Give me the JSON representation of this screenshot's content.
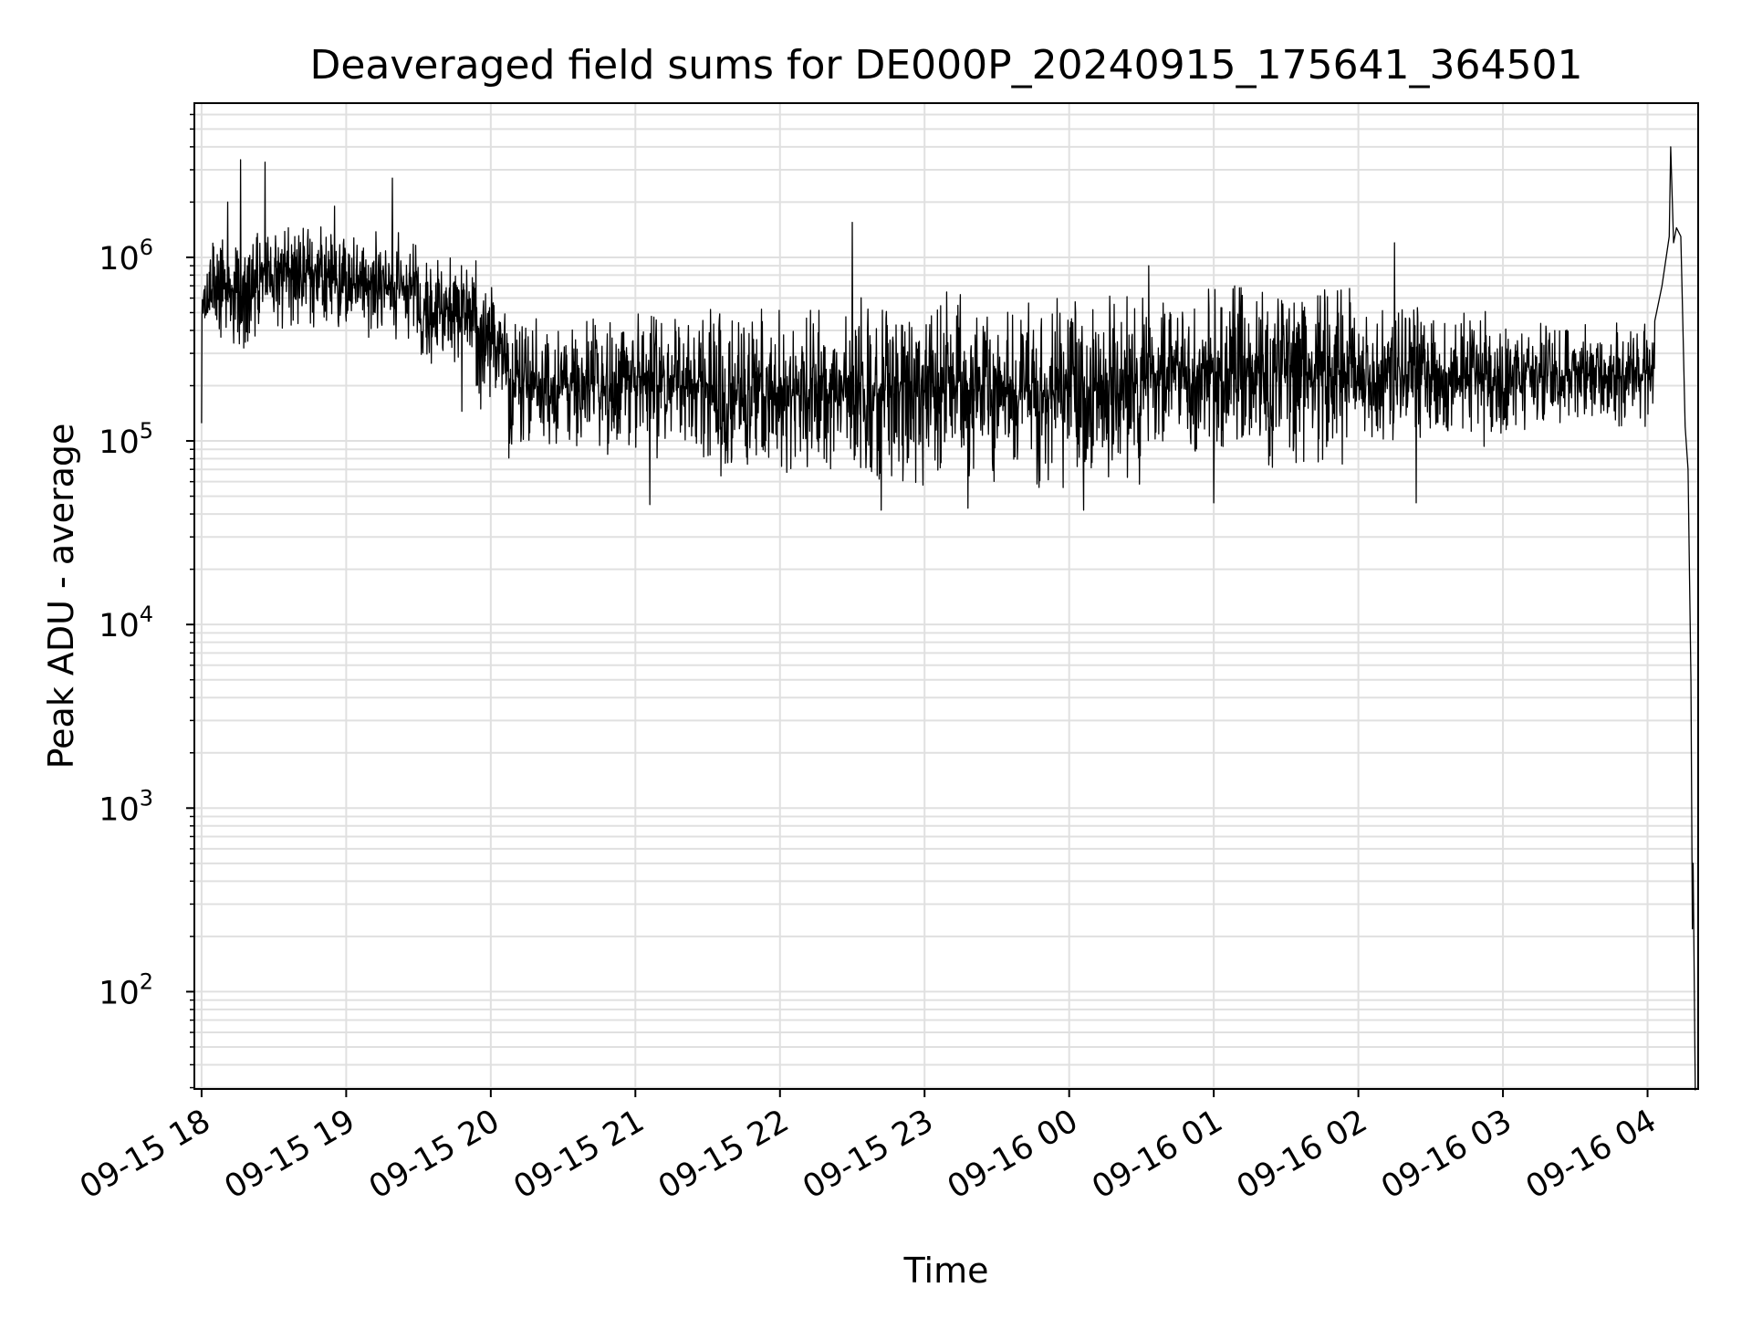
{
  "chart_data": {
    "type": "line",
    "title": "Deaveraged field sums for DE000P_20240915_175641_364501",
    "xlabel": "Time",
    "ylabel": "Peak ADU - average",
    "x_ticks": [
      "09-15 18",
      "09-15 19",
      "09-15 20",
      "09-15 21",
      "09-15 22",
      "09-15 23",
      "09-16 00",
      "09-16 01",
      "09-16 02",
      "09-16 03",
      "09-16 04"
    ],
    "y_ticks": [
      {
        "base": "10",
        "exp": "2",
        "value": 100
      },
      {
        "base": "10",
        "exp": "3",
        "value": 1000
      },
      {
        "base": "10",
        "exp": "4",
        "value": 10000
      },
      {
        "base": "10",
        "exp": "5",
        "value": 100000
      },
      {
        "base": "10",
        "exp": "6",
        "value": 1000000
      }
    ],
    "x_range_hours": [
      -0.05,
      10.35
    ],
    "y_log_range": [
      1.47,
      6.84
    ],
    "y_scale": "log",
    "grid": true,
    "line_color": "#000000",
    "grid_color": "#e0e0e0",
    "series": [
      {
        "name": "",
        "segments": [
          {
            "t": [
              0.0,
              0.05
            ],
            "lo": 250000,
            "hi": 1000000
          },
          {
            "t": [
              0.05,
              0.4
            ],
            "lo": 300000,
            "hi": 1400000
          },
          {
            "t": [
              0.4,
              1.0
            ],
            "lo": 400000,
            "hi": 1500000
          },
          {
            "t": [
              1.0,
              1.5
            ],
            "lo": 350000,
            "hi": 1400000
          },
          {
            "t": [
              1.5,
              1.9
            ],
            "lo": 250000,
            "hi": 1000000
          },
          {
            "t": [
              1.9,
              2.1
            ],
            "lo": 130000,
            "hi": 700000
          },
          {
            "t": [
              2.1,
              3.5
            ],
            "lo": 80000,
            "hi": 500000
          },
          {
            "t": [
              3.5,
              4.5
            ],
            "lo": 60000,
            "hi": 550000
          },
          {
            "t": [
              4.5,
              6.5
            ],
            "lo": 55000,
            "hi": 650000
          },
          {
            "t": [
              6.5,
              7.0
            ],
            "lo": 80000,
            "hi": 700000
          },
          {
            "t": [
              7.0,
              8.0
            ],
            "lo": 70000,
            "hi": 750000
          },
          {
            "t": [
              8.0,
              9.0
            ],
            "lo": 90000,
            "hi": 550000
          },
          {
            "t": [
              9.0,
              10.05
            ],
            "lo": 110000,
            "hi": 450000
          }
        ],
        "spikes": [
          {
            "t": 0.27,
            "v": 3400000
          },
          {
            "t": 0.44,
            "v": 3300000
          },
          {
            "t": 0.18,
            "v": 2000000
          },
          {
            "t": 1.32,
            "v": 2700000
          },
          {
            "t": 0.92,
            "v": 1900000
          },
          {
            "t": 4.5,
            "v": 1550000
          },
          {
            "t": 8.25,
            "v": 1200000
          },
          {
            "t": 6.55,
            "v": 900000
          },
          {
            "t": 0.0,
            "v": 125000
          },
          {
            "t": 1.8,
            "v": 145000
          },
          {
            "t": 3.1,
            "v": 45000
          },
          {
            "t": 4.7,
            "v": 42000
          },
          {
            "t": 5.3,
            "v": 43000
          },
          {
            "t": 6.1,
            "v": 42000
          },
          {
            "t": 7.0,
            "v": 46000
          },
          {
            "t": 8.4,
            "v": 46000
          }
        ],
        "tail": [
          {
            "t": 10.05,
            "v": 450000
          },
          {
            "t": 10.1,
            "v": 700000
          },
          {
            "t": 10.15,
            "v": 1300000
          },
          {
            "t": 10.16,
            "v": 4000000
          },
          {
            "t": 10.18,
            "v": 1200000
          },
          {
            "t": 10.2,
            "v": 1450000
          },
          {
            "t": 10.23,
            "v": 1300000
          },
          {
            "t": 10.24,
            "v": 600000
          },
          {
            "t": 10.26,
            "v": 120000
          },
          {
            "t": 10.28,
            "v": 70000
          },
          {
            "t": 10.3,
            "v": 5000
          },
          {
            "t": 10.31,
            "v": 220
          },
          {
            "t": 10.315,
            "v": 500
          },
          {
            "t": 10.32,
            "v": 200
          },
          {
            "t": 10.33,
            "v": 29
          }
        ]
      }
    ]
  }
}
